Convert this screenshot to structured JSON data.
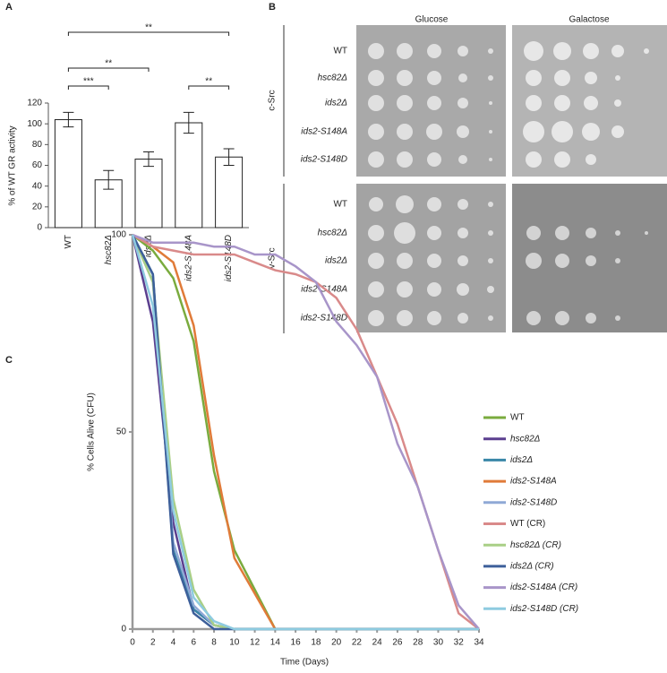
{
  "chart_data": [
    {
      "type": "bar",
      "label": "A",
      "ylabel": "% of WT GR activity",
      "categories": [
        "WT",
        "hsc82Δ",
        "ids2Δ",
        "ids2-S148A",
        "ids2-S148D"
      ],
      "values": [
        104,
        46,
        66,
        101,
        68
      ],
      "errors": [
        7,
        9,
        7,
        10,
        8
      ],
      "color": "#ffffff",
      "ylim": [
        0,
        120
      ],
      "yticks": [
        0,
        20,
        40,
        60,
        80,
        100,
        120
      ],
      "significance": [
        {
          "between": [
            "WT",
            "ids2-S148D"
          ],
          "label": "**"
        },
        {
          "between": [
            "WT",
            "hsc82Δ"
          ],
          "label": "***"
        },
        {
          "between": [
            "WT",
            "ids2Δ"
          ],
          "label": "**"
        },
        {
          "between": [
            "ids2-S148A",
            "ids2-S148D"
          ],
          "label": "**"
        }
      ]
    },
    {
      "type": "line",
      "label": "C",
      "xlabel": "Time (Days)",
      "ylabel": "% Cells Alive (CFU)",
      "x": [
        0,
        2,
        4,
        6,
        8,
        10,
        12,
        14,
        16,
        18,
        20,
        22,
        24,
        26,
        28,
        30,
        32,
        34
      ],
      "xlim": [
        0,
        34
      ],
      "xticks": [
        0,
        2,
        4,
        6,
        8,
        10,
        12,
        14,
        16,
        18,
        20,
        22,
        24,
        26,
        28,
        30,
        32,
        34
      ],
      "ylim": [
        0,
        100
      ],
      "yticks": [
        0,
        50,
        100
      ],
      "series": [
        {
          "name": "WT",
          "color": "#7aab3e",
          "values": [
            100,
            96,
            89,
            73,
            40,
            20,
            10,
            0,
            0,
            0,
            0,
            0,
            0,
            0,
            0,
            0,
            0,
            0
          ]
        },
        {
          "name": "hsc82Δ",
          "color": "#5b3f8f",
          "values": [
            100,
            78,
            27,
            5,
            1,
            0,
            0,
            0,
            0,
            0,
            0,
            0,
            0,
            0,
            0,
            0,
            0,
            0
          ]
        },
        {
          "name": "ids2Δ",
          "color": "#3a87a8",
          "values": [
            100,
            90,
            20,
            5,
            1,
            0,
            0,
            0,
            0,
            0,
            0,
            0,
            0,
            0,
            0,
            0,
            0,
            0
          ]
        },
        {
          "name": "ids2-S148A",
          "color": "#e07b39",
          "values": [
            100,
            97,
            93,
            77,
            44,
            18,
            9,
            0,
            0,
            0,
            0,
            0,
            0,
            0,
            0,
            0,
            0,
            0
          ]
        },
        {
          "name": "ids2-S148D",
          "color": "#8fa9d6",
          "values": [
            100,
            88,
            22,
            6,
            1,
            0,
            0,
            0,
            0,
            0,
            0,
            0,
            0,
            0,
            0,
            0,
            0,
            0
          ]
        },
        {
          "name": "WT (CR)",
          "color": "#d98a8a",
          "values": [
            100,
            97,
            96,
            95,
            95,
            95,
            93,
            91,
            90,
            88,
            84,
            76,
            64,
            52,
            36,
            20,
            4,
            0
          ]
        },
        {
          "name": "hsc82Δ (CR)",
          "color": "#a9cf86",
          "values": [
            100,
            88,
            33,
            10,
            1,
            0,
            0,
            0,
            0,
            0,
            0,
            0,
            0,
            0,
            0,
            0,
            0,
            0
          ]
        },
        {
          "name": "ids2Δ (CR)",
          "color": "#3d5f9a",
          "values": [
            100,
            90,
            19,
            4,
            0,
            0,
            0,
            0,
            0,
            0,
            0,
            0,
            0,
            0,
            0,
            0,
            0,
            0
          ]
        },
        {
          "name": "ids2-S148A (CR)",
          "color": "#a895c9",
          "values": [
            100,
            98,
            98,
            98,
            97,
            97,
            95,
            95,
            92,
            88,
            78,
            72,
            64,
            47,
            36,
            20,
            6,
            0
          ]
        },
        {
          "name": "ids2-S148D (CR)",
          "color": "#8ecbe0",
          "values": [
            100,
            82,
            30,
            8,
            2,
            0,
            0,
            0,
            0,
            0,
            0,
            0,
            0,
            0,
            0,
            0,
            0,
            0
          ]
        }
      ]
    }
  ],
  "panel_b": {
    "label": "B",
    "columns": [
      "Glucose",
      "Galactose"
    ],
    "groups": [
      {
        "name": "c-Src",
        "rows": [
          "WT",
          "hsc82Δ",
          "ids2Δ",
          "ids2-S148A",
          "ids2-S148D"
        ]
      },
      {
        "name": "v-Src",
        "rows": [
          "WT",
          "hsc82Δ",
          "ids2Δ",
          "ids2-S148A",
          "ids2-S148D"
        ]
      }
    ]
  }
}
